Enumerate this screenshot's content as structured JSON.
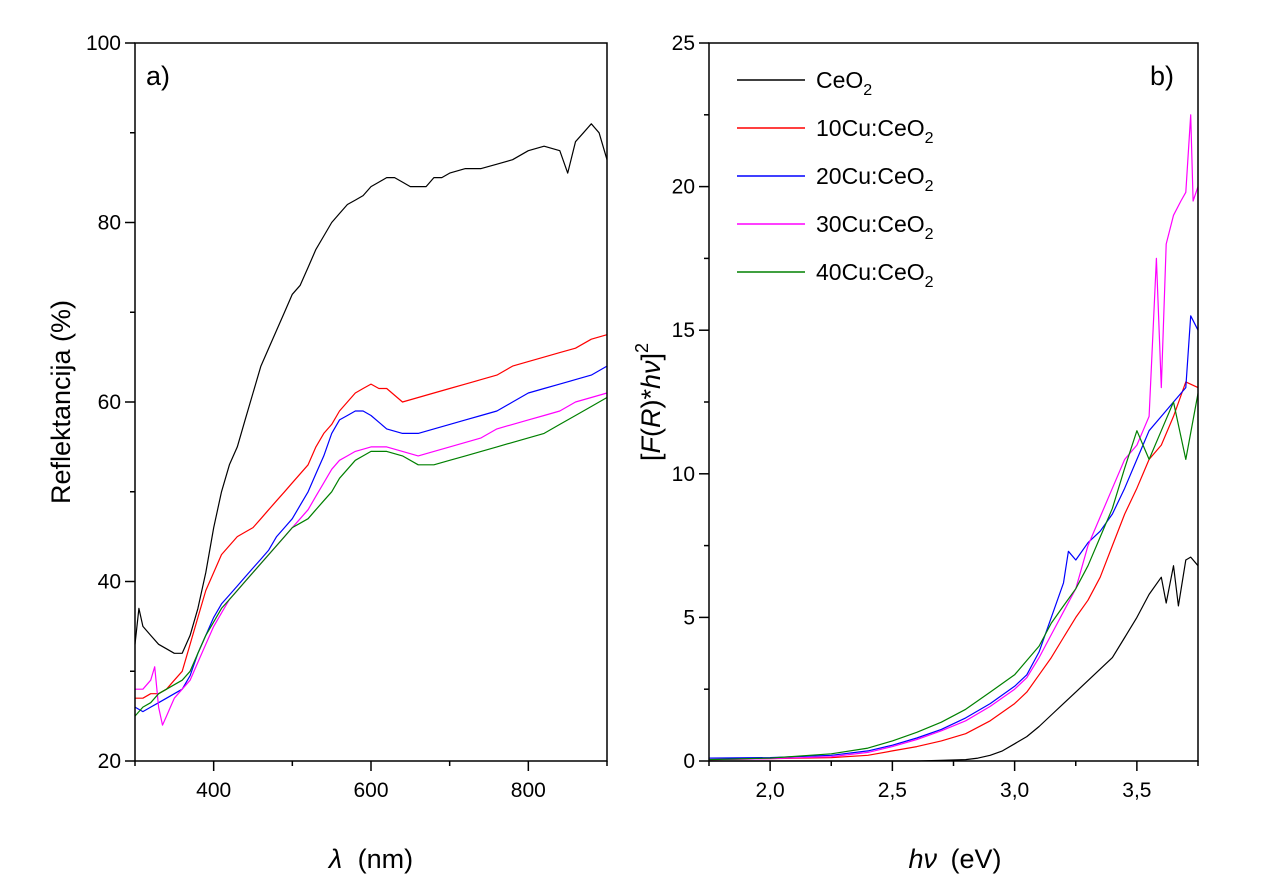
{
  "chart_data": [
    {
      "type": "line",
      "panel_label": "a)",
      "xlabel_symbol": "λ",
      "xlabel": "(nm)",
      "ylabel": "Reflektancija (%)",
      "xlim": [
        300,
        900
      ],
      "ylim": [
        20,
        100
      ],
      "xticks": [
        400,
        600,
        800
      ],
      "yticks": [
        20,
        40,
        60,
        80,
        100
      ],
      "xtick_labels": [
        "400",
        "600",
        "800"
      ],
      "ytick_labels": [
        "20",
        "40",
        "60",
        "80",
        "100"
      ],
      "series": [
        {
          "name": "CeO2",
          "color": "#000000",
          "x": [
            300,
            305,
            310,
            320,
            330,
            340,
            350,
            360,
            370,
            380,
            390,
            400,
            410,
            420,
            430,
            440,
            450,
            460,
            470,
            480,
            490,
            500,
            510,
            520,
            530,
            540,
            550,
            560,
            570,
            580,
            590,
            600,
            610,
            620,
            630,
            640,
            650,
            660,
            670,
            680,
            690,
            700,
            720,
            740,
            760,
            780,
            800,
            820,
            840,
            850,
            860,
            870,
            880,
            890,
            900
          ],
          "y": [
            33,
            37,
            35,
            34,
            33,
            32.5,
            32,
            32,
            34,
            37,
            41,
            46,
            50,
            53,
            55,
            58,
            61,
            64,
            66,
            68,
            70,
            72,
            73,
            75,
            77,
            78.5,
            80,
            81,
            82,
            82.5,
            83,
            84,
            84.5,
            85,
            85,
            84.5,
            84,
            84,
            84,
            85,
            85,
            85.5,
            86,
            86,
            86.5,
            87,
            88,
            88.5,
            88,
            85.5,
            89,
            90,
            91,
            90,
            87
          ]
        },
        {
          "name": "10Cu:CeO2",
          "color": "#ff0000",
          "x": [
            300,
            310,
            320,
            330,
            340,
            350,
            360,
            370,
            380,
            390,
            400,
            410,
            420,
            430,
            440,
            450,
            460,
            470,
            480,
            490,
            500,
            510,
            520,
            530,
            540,
            550,
            560,
            570,
            580,
            590,
            600,
            610,
            620,
            640,
            660,
            680,
            700,
            720,
            740,
            760,
            780,
            800,
            820,
            840,
            860,
            880,
            900
          ],
          "y": [
            27,
            27,
            27.5,
            27.5,
            28,
            29,
            30,
            33,
            36,
            39,
            41,
            43,
            44,
            45,
            45.5,
            46,
            47,
            48,
            49,
            50,
            51,
            52,
            53,
            55,
            56.5,
            57.5,
            59,
            60,
            61,
            61.5,
            62,
            61.5,
            61.5,
            60,
            60.5,
            61,
            61.5,
            62,
            62.5,
            63,
            64,
            64.5,
            65,
            65.5,
            66,
            67,
            67.5
          ]
        },
        {
          "name": "20Cu:CeO2",
          "color": "#0000ff",
          "x": [
            300,
            310,
            320,
            330,
            340,
            350,
            360,
            370,
            380,
            390,
            400,
            410,
            420,
            430,
            440,
            450,
            460,
            470,
            480,
            490,
            500,
            510,
            520,
            530,
            540,
            550,
            560,
            570,
            580,
            590,
            600,
            620,
            640,
            660,
            680,
            700,
            720,
            740,
            760,
            780,
            800,
            820,
            840,
            860,
            880,
            900
          ],
          "y": [
            26,
            25.5,
            26,
            26.5,
            27,
            27.5,
            28,
            29.5,
            32,
            34,
            36,
            37.5,
            38.5,
            39.5,
            40.5,
            41.5,
            42.5,
            43.5,
            45,
            46,
            47,
            48.5,
            50,
            52,
            54,
            56.5,
            58,
            58.5,
            59,
            59,
            58.5,
            57,
            56.5,
            56.5,
            57,
            57.5,
            58,
            58.5,
            59,
            60,
            61,
            61.5,
            62,
            62.5,
            63,
            64
          ]
        },
        {
          "name": "30Cu:CeO2",
          "color": "#ff00ff",
          "x": [
            300,
            310,
            315,
            320,
            325,
            330,
            335,
            340,
            345,
            350,
            360,
            370,
            380,
            390,
            400,
            410,
            420,
            430,
            440,
            450,
            460,
            470,
            480,
            490,
            500,
            510,
            520,
            530,
            540,
            550,
            560,
            570,
            580,
            600,
            620,
            640,
            660,
            680,
            700,
            720,
            740,
            760,
            780,
            800,
            820,
            840,
            860,
            880,
            900
          ],
          "y": [
            28,
            28,
            28.5,
            29,
            30.5,
            26,
            24,
            25,
            26,
            27,
            28,
            29,
            31,
            33,
            35,
            36.5,
            38,
            39,
            40,
            41,
            42,
            43,
            44,
            45,
            46,
            47,
            48,
            49.5,
            51,
            52.5,
            53.5,
            54,
            54.5,
            55,
            55,
            54.5,
            54,
            54.5,
            55,
            55.5,
            56,
            57,
            57.5,
            58,
            58.5,
            59,
            60,
            60.5,
            61
          ]
        },
        {
          "name": "40Cu:CeO2",
          "color": "#008000",
          "x": [
            300,
            310,
            320,
            330,
            340,
            350,
            360,
            370,
            380,
            390,
            400,
            410,
            420,
            430,
            440,
            450,
            460,
            470,
            480,
            490,
            500,
            510,
            520,
            530,
            540,
            550,
            560,
            570,
            580,
            590,
            600,
            620,
            640,
            660,
            680,
            700,
            720,
            740,
            760,
            780,
            800,
            820,
            840,
            860,
            880,
            900
          ],
          "y": [
            25,
            26,
            26.5,
            27.5,
            28,
            28.5,
            29,
            30,
            32,
            34,
            35.5,
            37,
            38,
            39,
            40,
            41,
            42,
            43,
            44,
            45,
            46,
            46.5,
            47,
            48,
            49,
            50,
            51.5,
            52.5,
            53.5,
            54,
            54.5,
            54.5,
            54,
            53,
            53,
            53.5,
            54,
            54.5,
            55,
            55.5,
            56,
            56.5,
            57.5,
            58.5,
            59.5,
            60.5
          ]
        }
      ]
    },
    {
      "type": "line",
      "panel_label": "b)",
      "xlabel_symbol": "hν",
      "xlabel": "(eV)",
      "ylabel": "[F(R)*hν]²",
      "xlim": [
        1.75,
        3.75
      ],
      "ylim": [
        0,
        25
      ],
      "xticks": [
        2.0,
        2.5,
        3.0,
        3.5
      ],
      "yticks": [
        0,
        5,
        10,
        15,
        20,
        25
      ],
      "xtick_labels": [
        "2,0",
        "2,5",
        "3,0",
        "3,5"
      ],
      "ytick_labels": [
        "0",
        "5",
        "10",
        "15",
        "20",
        "25"
      ],
      "legend_position": "top-left",
      "series": [
        {
          "name": "CeO2",
          "legend_label": "CeO",
          "legend_sub": "2",
          "color": "#000000",
          "x": [
            1.75,
            2.0,
            2.25,
            2.5,
            2.6,
            2.7,
            2.8,
            2.85,
            2.9,
            2.95,
            3.0,
            3.05,
            3.1,
            3.15,
            3.2,
            3.25,
            3.3,
            3.35,
            3.4,
            3.45,
            3.5,
            3.55,
            3.6,
            3.62,
            3.65,
            3.67,
            3.7,
            3.72,
            3.75
          ],
          "y": [
            0,
            0,
            0,
            0,
            0,
            0.02,
            0.05,
            0.1,
            0.2,
            0.35,
            0.6,
            0.85,
            1.2,
            1.6,
            2.0,
            2.4,
            2.8,
            3.2,
            3.6,
            4.3,
            5.0,
            5.8,
            6.4,
            5.5,
            6.8,
            5.4,
            7.0,
            7.1,
            6.8
          ]
        },
        {
          "name": "10Cu:CeO2",
          "legend_label": "10Cu:CeO",
          "legend_sub": "2",
          "color": "#ff0000",
          "x": [
            1.75,
            2.0,
            2.25,
            2.4,
            2.5,
            2.6,
            2.7,
            2.8,
            2.9,
            3.0,
            3.05,
            3.1,
            3.15,
            3.2,
            3.25,
            3.3,
            3.35,
            3.4,
            3.45,
            3.5,
            3.55,
            3.6,
            3.65,
            3.7,
            3.75
          ],
          "y": [
            0.05,
            0.08,
            0.12,
            0.2,
            0.35,
            0.5,
            0.7,
            0.95,
            1.4,
            2.0,
            2.4,
            3.0,
            3.6,
            4.3,
            5.0,
            5.6,
            6.4,
            7.5,
            8.6,
            9.5,
            10.5,
            11.0,
            12.0,
            13.2,
            13.0
          ]
        },
        {
          "name": "20Cu:CeO2",
          "legend_label": "20Cu:CeO",
          "legend_sub": "2",
          "color": "#0000ff",
          "x": [
            1.75,
            2.0,
            2.25,
            2.4,
            2.5,
            2.6,
            2.7,
            2.8,
            2.9,
            3.0,
            3.05,
            3.1,
            3.15,
            3.2,
            3.22,
            3.25,
            3.3,
            3.35,
            3.4,
            3.45,
            3.5,
            3.55,
            3.6,
            3.65,
            3.7,
            3.72,
            3.75
          ],
          "y": [
            0.1,
            0.12,
            0.2,
            0.35,
            0.55,
            0.8,
            1.1,
            1.5,
            2.0,
            2.6,
            3.0,
            3.8,
            5.0,
            6.2,
            7.3,
            7.0,
            7.6,
            8.0,
            8.6,
            9.5,
            10.5,
            11.5,
            12.0,
            12.5,
            13.0,
            15.5,
            15.0
          ]
        },
        {
          "name": "30Cu:CeO2",
          "legend_label": "30Cu:CeO",
          "legend_sub": "2",
          "color": "#ff00ff",
          "x": [
            1.75,
            2.0,
            2.25,
            2.4,
            2.5,
            2.6,
            2.7,
            2.8,
            2.9,
            3.0,
            3.05,
            3.1,
            3.15,
            3.2,
            3.25,
            3.3,
            3.35,
            3.4,
            3.45,
            3.5,
            3.55,
            3.58,
            3.6,
            3.62,
            3.65,
            3.68,
            3.7,
            3.72,
            3.73,
            3.75
          ],
          "y": [
            0.05,
            0.08,
            0.15,
            0.3,
            0.5,
            0.75,
            1.05,
            1.4,
            1.9,
            2.5,
            2.9,
            3.6,
            4.4,
            5.2,
            6.0,
            7.5,
            8.5,
            9.5,
            10.5,
            11.0,
            12.0,
            17.5,
            13.0,
            18.0,
            19.0,
            19.5,
            19.8,
            22.5,
            19.5,
            20.0
          ]
        },
        {
          "name": "40Cu:CeO2",
          "legend_label": "40Cu:CeO",
          "legend_sub": "2",
          "color": "#008000",
          "x": [
            1.75,
            2.0,
            2.25,
            2.4,
            2.5,
            2.6,
            2.7,
            2.8,
            2.9,
            3.0,
            3.05,
            3.1,
            3.15,
            3.2,
            3.25,
            3.3,
            3.35,
            3.4,
            3.45,
            3.5,
            3.55,
            3.6,
            3.65,
            3.7,
            3.75
          ],
          "y": [
            0.05,
            0.1,
            0.25,
            0.45,
            0.7,
            1.0,
            1.35,
            1.8,
            2.4,
            3.0,
            3.5,
            4.0,
            4.8,
            5.4,
            6.0,
            6.8,
            7.8,
            8.8,
            10.2,
            11.5,
            10.5,
            11.5,
            12.5,
            10.5,
            12.8
          ]
        }
      ]
    }
  ]
}
